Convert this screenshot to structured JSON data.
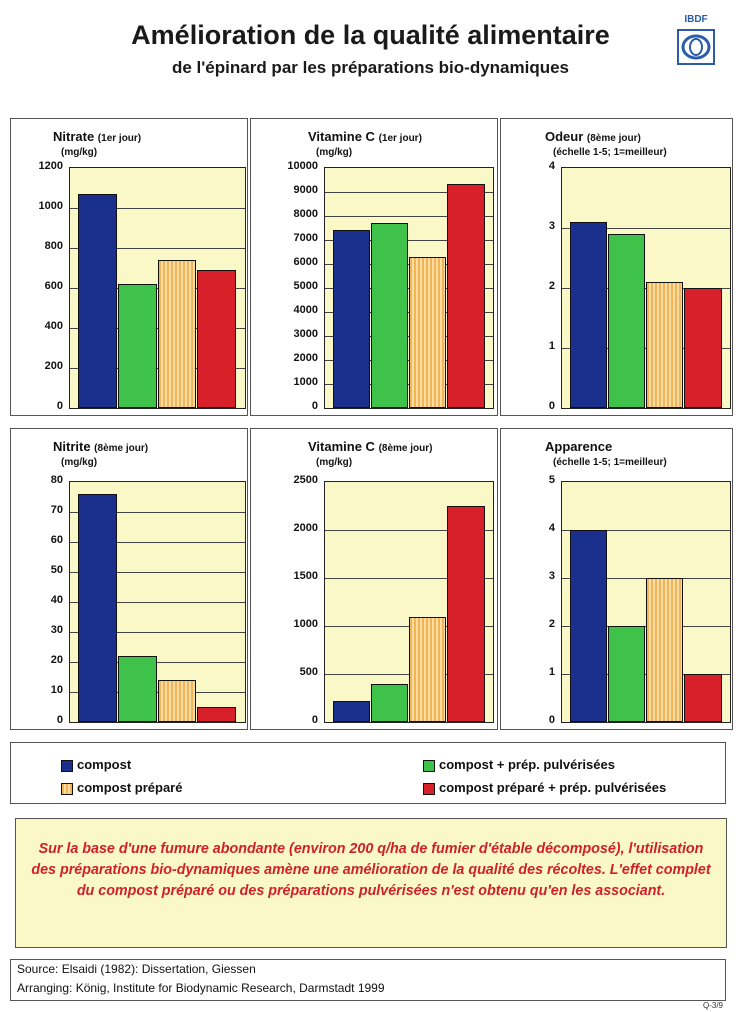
{
  "header": {
    "title": "Amélioration de la qualité alimentaire",
    "subtitle": "de l'épinard par les préparations bio-dynamiques",
    "logo_text": "IBDF"
  },
  "colors": {
    "compost": "#1b2f8c",
    "compost_prep_pulv": "#3fc24a",
    "compost_prepare": "#f0b45a",
    "compost_prepare_prep_pulv": "#d8202a",
    "plot_bg": "#fbf8c8"
  },
  "chart_data": [
    {
      "type": "bar",
      "title": "Nitrate",
      "title_suffix": "(1er jour)",
      "ylabel": "(mg/kg)",
      "ylim": [
        0,
        1200
      ],
      "yticks": [
        0,
        200,
        400,
        600,
        800,
        1000,
        1200
      ],
      "values": [
        1070,
        620,
        740,
        690
      ]
    },
    {
      "type": "bar",
      "title": "Vitamine C",
      "title_suffix": "(1er jour)",
      "ylabel": "(mg/kg)",
      "ylim": [
        0,
        10000
      ],
      "yticks": [
        0,
        1000,
        2000,
        3000,
        4000,
        5000,
        6000,
        7000,
        8000,
        9000,
        10000
      ],
      "values": [
        7400,
        7700,
        6300,
        9350
      ]
    },
    {
      "type": "bar",
      "title": "Odeur",
      "title_suffix": "(8ème jour)",
      "ylabel": "(échelle 1-5; 1=meilleur)",
      "ylim": [
        0,
        4
      ],
      "yticks": [
        0,
        1,
        2,
        3,
        4
      ],
      "values": [
        3.1,
        2.9,
        2.1,
        2.0
      ]
    },
    {
      "type": "bar",
      "title": "Nitrite",
      "title_suffix": "(8ème jour)",
      "ylabel": "(mg/kg)",
      "ylim": [
        0,
        80
      ],
      "yticks": [
        0,
        10,
        20,
        30,
        40,
        50,
        60,
        70,
        80
      ],
      "values": [
        76,
        22,
        14,
        5
      ]
    },
    {
      "type": "bar",
      "title": "Vitamine C",
      "title_suffix": "(8ème jour)",
      "ylabel": "(mg/kg)",
      "ylim": [
        0,
        2500
      ],
      "yticks": [
        0,
        500,
        1000,
        1500,
        2000,
        2500
      ],
      "values": [
        220,
        400,
        1090,
        2250
      ]
    },
    {
      "type": "bar",
      "title": "Apparence",
      "title_suffix": "",
      "ylabel": "(échelle 1-5; 1=meilleur)",
      "ylim": [
        0,
        5
      ],
      "yticks": [
        0,
        1,
        2,
        3,
        4,
        5
      ],
      "values": [
        4,
        2,
        3,
        1
      ]
    }
  ],
  "legend": [
    {
      "label": "compost",
      "color_key": "compost"
    },
    {
      "label": "compost + prép. pulvérisées",
      "color_key": "compost_prep_pulv"
    },
    {
      "label": "compost préparé",
      "color_key": "compost_prepare"
    },
    {
      "label": "compost préparé + prép. pulvérisées",
      "color_key": "compost_prepare_prep_pulv"
    }
  ],
  "note": "Sur la base d'une fumure abondante (environ 200 q/ha de fumier d'étable décomposé), l'utilisation des préparations bio-dynamiques  amène une amélioration de la qualité des récoltes. L'effet complet du compost préparé ou des préparations pulvérisées n'est obtenu qu'en les associant.",
  "source": {
    "line1": "Source: Elsaidi (1982): Dissertation, Giessen",
    "line2": "Arranging: König, Institute for Biodynamic Research, Darmstadt 1999"
  },
  "ref": "Q-3/9"
}
